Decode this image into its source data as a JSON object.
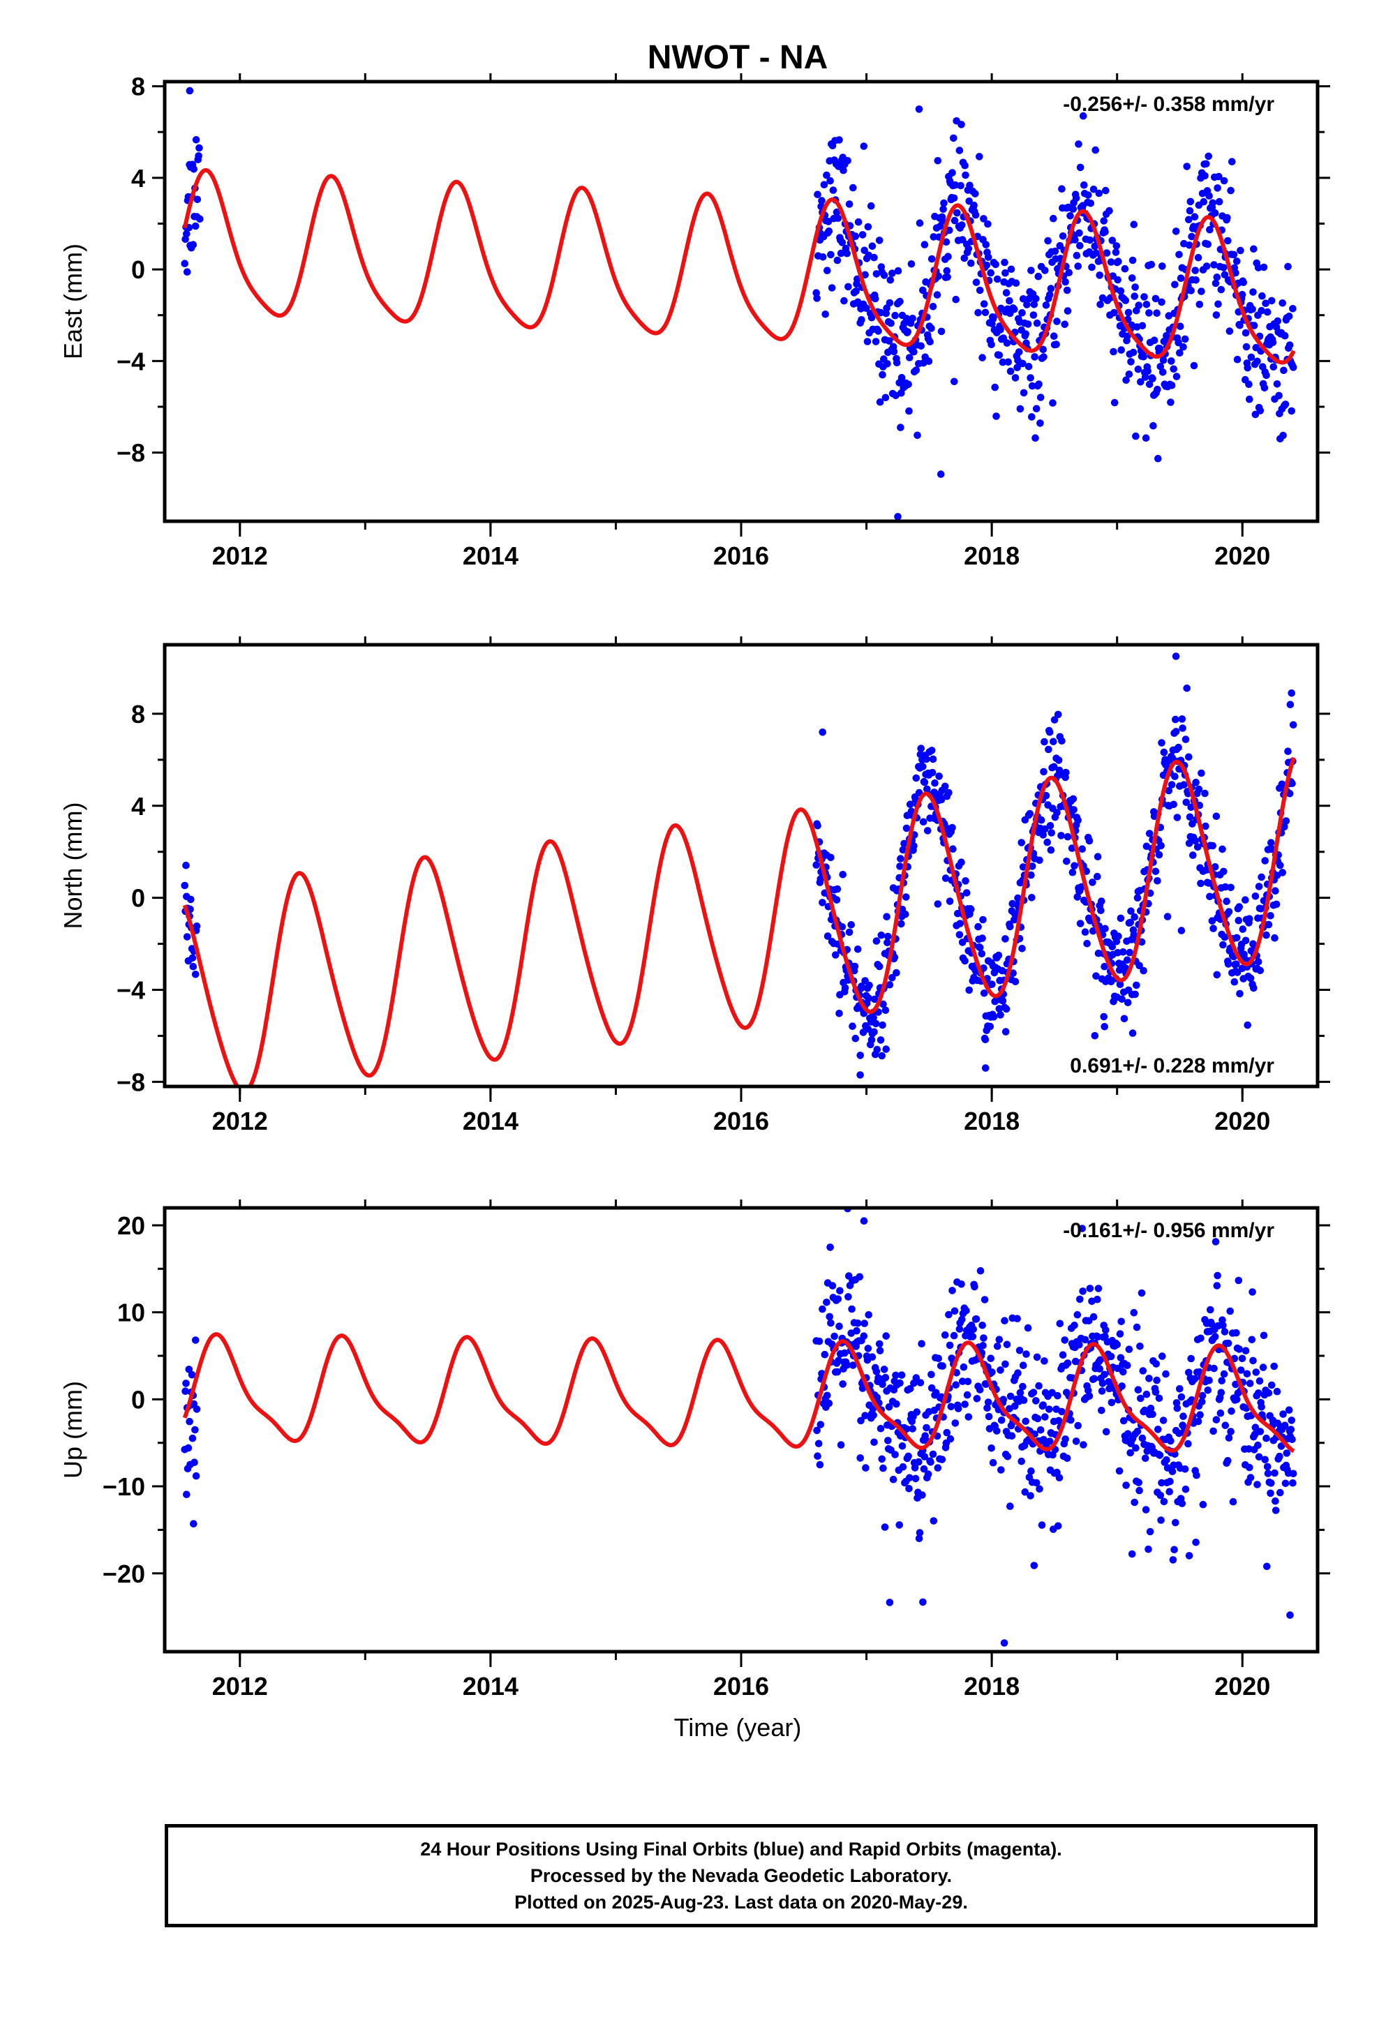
{
  "title": "NWOT - NA",
  "xlabel": "Time (year)",
  "footer": {
    "line1": "24 Hour Positions Using Final Orbits (blue) and Rapid Orbits (magenta).",
    "line2": "Processed by the Nevada Geodetic Laboratory.",
    "line3": "Plotted on 2025-Aug-23. Last data on 2020-May-29."
  },
  "colors": {
    "data": "#0000ff",
    "model": "#ee1111",
    "axis": "#000000"
  },
  "chart_data": [
    {
      "type": "scatter",
      "ylabel": "East (mm)",
      "rate_label": "-0.256+/- 0.358 mm/yr",
      "rate_position": "top-right",
      "xlim": [
        2011.4,
        2020.6
      ],
      "ylim": [
        -11,
        8.2
      ],
      "xticks": [
        "2012",
        "2014",
        "2016",
        "2018",
        "2020"
      ],
      "yticks": [
        "8",
        "4",
        "0",
        "−4",
        "−8"
      ],
      "ytick_values": [
        8,
        4,
        0,
        -4,
        -8
      ],
      "model": {
        "offset": -0.3,
        "rate": -0.256,
        "ref_year": 2016,
        "annual_amp": 3.0,
        "annual_peak": 2016.75,
        "semi_amp": 0.6,
        "semi_phase": 0.6
      },
      "data_segments": [
        {
          "start": 2011.56,
          "end": 2011.68,
          "scatter": 1.5
        },
        {
          "start": 2016.6,
          "end": 2020.41,
          "scatter": 1.6
        }
      ],
      "outliers": [
        [
          2011.6,
          7.8
        ],
        [
          2017.42,
          7.0
        ],
        [
          2017.25,
          -10.8
        ],
        [
          2018.73,
          6.7
        ],
        [
          2017.7,
          -4.9
        ]
      ]
    },
    {
      "type": "scatter",
      "ylabel": "North (mm)",
      "rate_label": "0.691+/- 0.228 mm/yr",
      "rate_position": "bottom-right",
      "xlim": [
        2011.4,
        2020.6
      ],
      "ylim": [
        -8.2,
        11
      ],
      "xticks": [
        "2012",
        "2014",
        "2016",
        "2018",
        "2020"
      ],
      "yticks": [
        "8",
        "4",
        "0",
        "−4",
        "−8"
      ],
      "ytick_values": [
        8,
        4,
        0,
        -4,
        -8
      ],
      "model": {
        "offset": -1.25,
        "rate": 0.691,
        "ref_year": 2016,
        "annual_amp": 4.5,
        "annual_peak": 2016.5,
        "semi_amp": 0.5,
        "semi_phase": 1.2
      },
      "data_segments": [
        {
          "start": 2011.56,
          "end": 2011.66,
          "scatter": 1.1
        },
        {
          "start": 2016.6,
          "end": 2020.41,
          "scatter": 1.2
        }
      ],
      "outliers": [
        [
          2016.65,
          7.2
        ],
        [
          2016.95,
          -7.7
        ],
        [
          2017.95,
          -7.4
        ],
        [
          2019.47,
          10.5
        ],
        [
          2018.9,
          -5.6
        ]
      ]
    },
    {
      "type": "scatter",
      "ylabel": "Up (mm)",
      "rate_label": "-0.161+/- 0.956 mm/yr",
      "rate_position": "top-right",
      "xlim": [
        2011.4,
        2020.6
      ],
      "ylim": [
        -29,
        22
      ],
      "xticks": [
        "2012",
        "2014",
        "2016",
        "2018",
        "2020"
      ],
      "yticks": [
        "20",
        "10",
        "0",
        "−10",
        "−20"
      ],
      "ytick_values": [
        20,
        10,
        0,
        -10,
        -20
      ],
      "model": {
        "offset": 0.0,
        "rate": -0.161,
        "ref_year": 2016,
        "annual_amp": 5.5,
        "annual_peak": 2016.85,
        "semi_amp": 1.6,
        "semi_phase": 0.9
      },
      "data_segments": [
        {
          "start": 2011.56,
          "end": 2011.66,
          "scatter": 4.0
        },
        {
          "start": 2016.6,
          "end": 2020.41,
          "scatter": 4.8
        }
      ],
      "outliers": [
        [
          2011.63,
          -14.3
        ],
        [
          2016.98,
          20.5
        ],
        [
          2017.45,
          -23.3
        ],
        [
          2018.1,
          -28.0
        ],
        [
          2020.38,
          -24.8
        ]
      ]
    }
  ]
}
